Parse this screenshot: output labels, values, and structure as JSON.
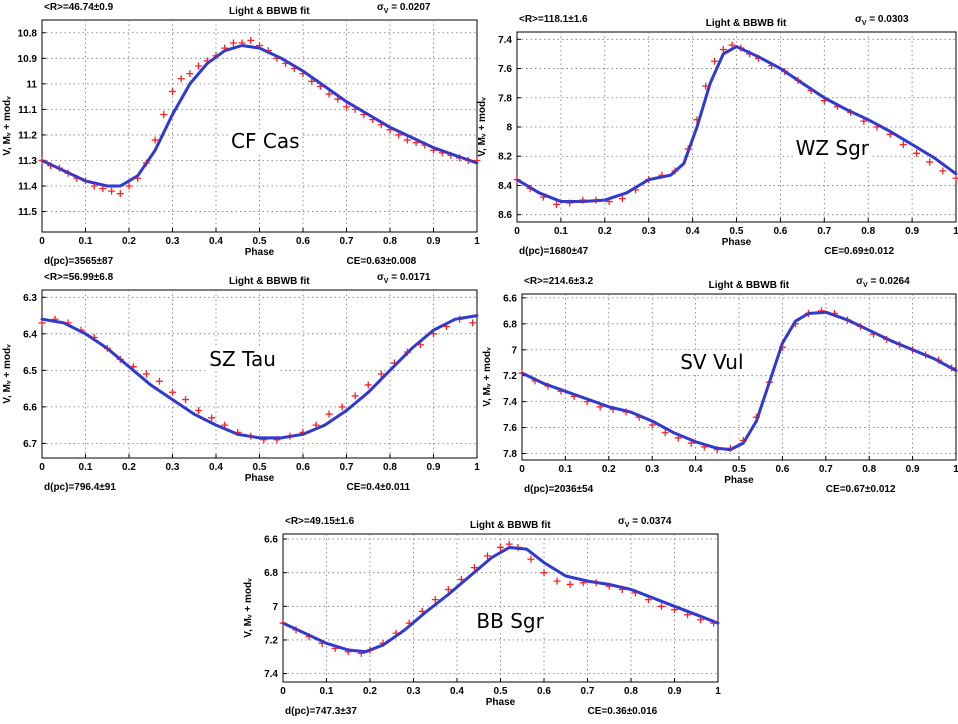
{
  "chart_data": [
    {
      "type": "scatter",
      "id": "cf",
      "title": "Light & BBWB fit",
      "star_name": "CF Cas",
      "radius_label": "<R>=46.74±0.9",
      "sigma_label": "σ",
      "sigma_sub": "V",
      "sigma_value": " = 0.0207",
      "footer_left": "d(pc)=3565±87",
      "footer_right": "CE=0.63±0.008",
      "xlabel": "Phase",
      "ylabel": "V, Mᵥ + modᵥ",
      "xlim": [
        0,
        1
      ],
      "ylim": [
        10.75,
        11.58
      ],
      "yreverse": true,
      "xticks": [
        "0",
        "0.1",
        "0.2",
        "0.3",
        "0.4",
        "0.5",
        "0.6",
        "0.7",
        "0.8",
        "0.9",
        "1"
      ],
      "yticks": [
        "10.8",
        "10.9",
        "11",
        "11.1",
        "11.2",
        "11.3",
        "11.4",
        "11.5"
      ],
      "ytick_values": [
        10.8,
        10.9,
        11.0,
        11.1,
        11.2,
        11.3,
        11.4,
        11.5
      ],
      "grid": true,
      "series": [
        {
          "kind": "points",
          "color": "#ff2020",
          "x": [
            0.0,
            0.02,
            0.04,
            0.06,
            0.08,
            0.1,
            0.12,
            0.14,
            0.16,
            0.18,
            0.2,
            0.22,
            0.24,
            0.26,
            0.28,
            0.3,
            0.32,
            0.34,
            0.36,
            0.38,
            0.4,
            0.42,
            0.44,
            0.46,
            0.48,
            0.5,
            0.52,
            0.54,
            0.56,
            0.58,
            0.6,
            0.62,
            0.64,
            0.66,
            0.68,
            0.7,
            0.72,
            0.74,
            0.76,
            0.78,
            0.8,
            0.82,
            0.84,
            0.86,
            0.88,
            0.9,
            0.92,
            0.94,
            0.96,
            0.98,
            1.0
          ],
          "y": [
            11.3,
            11.32,
            11.33,
            11.35,
            11.37,
            11.38,
            11.4,
            11.41,
            11.42,
            11.43,
            11.4,
            11.37,
            11.31,
            11.22,
            11.12,
            11.03,
            10.98,
            10.96,
            10.93,
            10.91,
            10.89,
            10.86,
            10.84,
            10.84,
            10.83,
            10.85,
            10.87,
            10.9,
            10.92,
            10.94,
            10.96,
            10.99,
            11.01,
            11.04,
            11.06,
            11.09,
            11.1,
            11.12,
            11.14,
            11.16,
            11.18,
            11.2,
            11.22,
            11.23,
            11.24,
            11.26,
            11.27,
            11.28,
            11.29,
            11.3,
            11.3
          ]
        },
        {
          "kind": "line",
          "color": "#2f3bd0",
          "x": [
            0.0,
            0.05,
            0.1,
            0.15,
            0.18,
            0.22,
            0.26,
            0.3,
            0.34,
            0.38,
            0.42,
            0.46,
            0.5,
            0.55,
            0.6,
            0.65,
            0.7,
            0.75,
            0.8,
            0.85,
            0.9,
            0.95,
            1.0
          ],
          "y": [
            11.3,
            11.34,
            11.38,
            11.4,
            11.4,
            11.36,
            11.26,
            11.12,
            11.0,
            10.92,
            10.87,
            10.85,
            10.86,
            10.9,
            10.95,
            11.01,
            11.07,
            11.12,
            11.17,
            11.21,
            11.25,
            11.28,
            11.31
          ]
        }
      ]
    },
    {
      "type": "scatter",
      "id": "wz",
      "title": "Light & BBWB fit",
      "star_name": "WZ Sgr",
      "radius_label": "<R>=118.1±1.6",
      "sigma_label": "σ",
      "sigma_sub": "V",
      "sigma_value": " = 0.0303",
      "footer_left": "d(pc)=1680±47",
      "footer_right": "CE=0.69±0.012",
      "xlabel": "Phase",
      "ylabel": "V, Mᵥ + modᵥ",
      "xlim": [
        0,
        1
      ],
      "ylim": [
        7.35,
        8.65
      ],
      "yreverse": true,
      "xticks": [
        "0",
        "0.1",
        "0.2",
        "0.3",
        "0.4",
        "0.5",
        "0.6",
        "0.7",
        "0.8",
        "0.9",
        "1"
      ],
      "yticks": [
        "7.4",
        "7.6",
        "7.8",
        "8",
        "8.2",
        "8.4",
        "8.6"
      ],
      "ytick_values": [
        7.4,
        7.6,
        7.8,
        8.0,
        8.2,
        8.4,
        8.6
      ],
      "grid": true,
      "series": [
        {
          "kind": "points",
          "color": "#ff2020",
          "x": [
            0.0,
            0.03,
            0.06,
            0.09,
            0.12,
            0.15,
            0.18,
            0.21,
            0.24,
            0.27,
            0.3,
            0.33,
            0.36,
            0.39,
            0.41,
            0.43,
            0.45,
            0.47,
            0.49,
            0.51,
            0.53,
            0.55,
            0.58,
            0.61,
            0.64,
            0.67,
            0.7,
            0.73,
            0.76,
            0.79,
            0.82,
            0.85,
            0.88,
            0.91,
            0.94,
            0.97,
            1.0
          ],
          "y": [
            8.36,
            8.42,
            8.48,
            8.53,
            8.52,
            8.5,
            8.5,
            8.51,
            8.49,
            8.43,
            8.36,
            8.33,
            8.3,
            8.15,
            7.95,
            7.72,
            7.55,
            7.47,
            7.44,
            7.46,
            7.5,
            7.53,
            7.58,
            7.62,
            7.68,
            7.75,
            7.82,
            7.86,
            7.9,
            7.96,
            8.0,
            8.05,
            8.12,
            8.18,
            8.24,
            8.3,
            8.35
          ]
        },
        {
          "kind": "line",
          "color": "#2f3bd0",
          "x": [
            0.0,
            0.05,
            0.1,
            0.15,
            0.2,
            0.25,
            0.3,
            0.35,
            0.38,
            0.41,
            0.44,
            0.47,
            0.5,
            0.55,
            0.6,
            0.65,
            0.7,
            0.75,
            0.8,
            0.85,
            0.9,
            0.95,
            1.0
          ],
          "y": [
            8.36,
            8.45,
            8.51,
            8.51,
            8.5,
            8.45,
            8.36,
            8.33,
            8.25,
            8.0,
            7.7,
            7.5,
            7.45,
            7.52,
            7.6,
            7.7,
            7.8,
            7.88,
            7.95,
            8.03,
            8.12,
            8.21,
            8.32
          ]
        }
      ]
    },
    {
      "type": "scatter",
      "id": "sz",
      "title": "Light & BBWB fit",
      "star_name": "SZ Tau",
      "radius_label": "<R>=56.99±6.8",
      "sigma_label": "σ",
      "sigma_sub": "V",
      "sigma_value": " = 0.0171",
      "footer_left": "d(pc)=796.4±91",
      "footer_right": "CE=0.4±0.011",
      "xlabel": "Phase",
      "ylabel": "V, Mᵥ + modᵥ",
      "xlim": [
        0,
        1
      ],
      "ylim": [
        6.28,
        6.74
      ],
      "yreverse": true,
      "xticks": [
        "0",
        "0.1",
        "0.2",
        "0.3",
        "0.4",
        "0.5",
        "0.6",
        "0.7",
        "0.8",
        "0.9",
        "1"
      ],
      "yticks": [
        "6.3",
        "6.4",
        "6.5",
        "6.6",
        "6.7"
      ],
      "ytick_values": [
        6.3,
        6.4,
        6.5,
        6.6,
        6.7
      ],
      "grid": true,
      "series": [
        {
          "kind": "points",
          "color": "#ff2020",
          "x": [
            0.0,
            0.03,
            0.06,
            0.09,
            0.12,
            0.15,
            0.18,
            0.21,
            0.24,
            0.27,
            0.3,
            0.33,
            0.36,
            0.39,
            0.42,
            0.45,
            0.48,
            0.51,
            0.54,
            0.57,
            0.6,
            0.63,
            0.66,
            0.69,
            0.72,
            0.75,
            0.78,
            0.81,
            0.84,
            0.87,
            0.9,
            0.93,
            0.96,
            0.99
          ],
          "y": [
            6.37,
            6.36,
            6.37,
            6.39,
            6.41,
            6.44,
            6.47,
            6.49,
            6.51,
            6.53,
            6.56,
            6.58,
            6.61,
            6.63,
            6.65,
            6.67,
            6.68,
            6.69,
            6.69,
            6.68,
            6.67,
            6.65,
            6.62,
            6.6,
            6.57,
            6.54,
            6.51,
            6.48,
            6.45,
            6.43,
            6.4,
            6.38,
            6.36,
            6.37
          ]
        },
        {
          "kind": "line",
          "color": "#2f3bd0",
          "x": [
            0.0,
            0.05,
            0.1,
            0.15,
            0.2,
            0.25,
            0.3,
            0.35,
            0.4,
            0.45,
            0.5,
            0.55,
            0.6,
            0.65,
            0.7,
            0.75,
            0.8,
            0.85,
            0.9,
            0.95,
            1.0
          ],
          "y": [
            6.36,
            6.37,
            6.4,
            6.44,
            6.49,
            6.54,
            6.58,
            6.62,
            6.65,
            6.675,
            6.685,
            6.685,
            6.675,
            6.65,
            6.61,
            6.56,
            6.5,
            6.44,
            6.39,
            6.36,
            6.35
          ]
        }
      ]
    },
    {
      "type": "scatter",
      "id": "sv",
      "title": "Light & BBWB fit",
      "star_name": "SV Vul",
      "radius_label": "<R>=214.6±3.2",
      "sigma_label": "σ",
      "sigma_sub": "V",
      "sigma_value": " = 0.0264",
      "footer_left": "d(pc)=2036±54",
      "footer_right": "CE=0.67±0.012",
      "xlabel": "Phase",
      "ylabel": "V, Mᵥ + modᵥ",
      "xlim": [
        0,
        1
      ],
      "ylim": [
        6.57,
        7.85
      ],
      "yreverse": true,
      "xticks": [
        "0",
        "0.1",
        "0.2",
        "0.3",
        "0.4",
        "0.5",
        "0.6",
        "0.7",
        "0.8",
        "0.9",
        "1"
      ],
      "yticks": [
        "6.6",
        "6.8",
        "7",
        "7.2",
        "7.4",
        "7.6",
        "7.8"
      ],
      "ytick_values": [
        6.6,
        6.8,
        7.0,
        7.2,
        7.4,
        7.6,
        7.8
      ],
      "grid": true,
      "series": [
        {
          "kind": "points",
          "color": "#ff2020",
          "x": [
            0.0,
            0.03,
            0.06,
            0.09,
            0.12,
            0.15,
            0.18,
            0.21,
            0.24,
            0.27,
            0.3,
            0.33,
            0.36,
            0.39,
            0.42,
            0.45,
            0.48,
            0.51,
            0.54,
            0.57,
            0.6,
            0.63,
            0.66,
            0.69,
            0.72,
            0.75,
            0.78,
            0.81,
            0.84,
            0.87,
            0.9,
            0.93,
            0.96,
            0.99
          ],
          "y": [
            7.18,
            7.24,
            7.28,
            7.32,
            7.36,
            7.4,
            7.44,
            7.46,
            7.48,
            7.52,
            7.58,
            7.64,
            7.68,
            7.72,
            7.75,
            7.77,
            7.76,
            7.7,
            7.52,
            7.25,
            6.98,
            6.8,
            6.72,
            6.7,
            6.72,
            6.77,
            6.82,
            6.88,
            6.92,
            6.96,
            7.0,
            7.04,
            7.08,
            7.14
          ]
        },
        {
          "kind": "line",
          "color": "#2f3bd0",
          "x": [
            0.0,
            0.05,
            0.1,
            0.15,
            0.2,
            0.25,
            0.3,
            0.35,
            0.4,
            0.45,
            0.48,
            0.51,
            0.54,
            0.57,
            0.6,
            0.63,
            0.66,
            0.7,
            0.75,
            0.8,
            0.85,
            0.9,
            0.95,
            1.0
          ],
          "y": [
            7.18,
            7.26,
            7.32,
            7.38,
            7.44,
            7.48,
            7.55,
            7.64,
            7.71,
            7.76,
            7.77,
            7.72,
            7.55,
            7.25,
            6.95,
            6.78,
            6.72,
            6.71,
            6.77,
            6.85,
            6.93,
            7.0,
            7.07,
            7.16
          ]
        }
      ]
    },
    {
      "type": "scatter",
      "id": "bb",
      "title": "Light & BBWB fit",
      "star_name": "BB Sgr",
      "radius_label": "<R>=49.15±1.6",
      "sigma_label": "σ",
      "sigma_sub": "V",
      "sigma_value": " = 0.0374",
      "footer_left": "d(pc)=747.3±37",
      "footer_right": "CE=0.36±0.016",
      "xlabel": "Phase",
      "ylabel": "V, Mᵥ + modᵥ",
      "xlim": [
        0,
        1
      ],
      "ylim": [
        6.57,
        7.45
      ],
      "yreverse": true,
      "xticks": [
        "0",
        "0.1",
        "0.2",
        "0.3",
        "0.4",
        "0.5",
        "0.6",
        "0.7",
        "0.8",
        "0.9",
        "1"
      ],
      "yticks": [
        "6.6",
        "6.8",
        "7",
        "7.2",
        "7.4"
      ],
      "ytick_values": [
        6.6,
        6.8,
        7.0,
        7.2,
        7.4
      ],
      "grid": true,
      "series": [
        {
          "kind": "points",
          "color": "#ff2020",
          "x": [
            0.0,
            0.03,
            0.06,
            0.09,
            0.12,
            0.15,
            0.18,
            0.2,
            0.23,
            0.26,
            0.29,
            0.32,
            0.35,
            0.38,
            0.41,
            0.44,
            0.47,
            0.5,
            0.52,
            0.54,
            0.57,
            0.6,
            0.63,
            0.66,
            0.69,
            0.72,
            0.75,
            0.78,
            0.81,
            0.84,
            0.87,
            0.9,
            0.93,
            0.96,
            0.99
          ],
          "y": [
            7.1,
            7.14,
            7.18,
            7.22,
            7.25,
            7.27,
            7.28,
            7.26,
            7.22,
            7.16,
            7.1,
            7.03,
            6.96,
            6.9,
            6.84,
            6.77,
            6.7,
            6.65,
            6.63,
            6.65,
            6.72,
            6.8,
            6.85,
            6.87,
            6.86,
            6.86,
            6.88,
            6.9,
            6.92,
            6.96,
            7.0,
            7.02,
            7.05,
            7.08,
            7.1
          ]
        },
        {
          "kind": "line",
          "color": "#2f3bd0",
          "x": [
            0.0,
            0.05,
            0.1,
            0.15,
            0.19,
            0.23,
            0.28,
            0.33,
            0.38,
            0.43,
            0.48,
            0.52,
            0.56,
            0.6,
            0.65,
            0.7,
            0.75,
            0.8,
            0.85,
            0.9,
            0.95,
            1.0
          ],
          "y": [
            7.1,
            7.16,
            7.22,
            7.26,
            7.27,
            7.23,
            7.14,
            7.03,
            6.93,
            6.82,
            6.71,
            6.65,
            6.66,
            6.74,
            6.82,
            6.85,
            6.87,
            6.9,
            6.95,
            7.0,
            7.05,
            7.1
          ]
        }
      ]
    }
  ]
}
